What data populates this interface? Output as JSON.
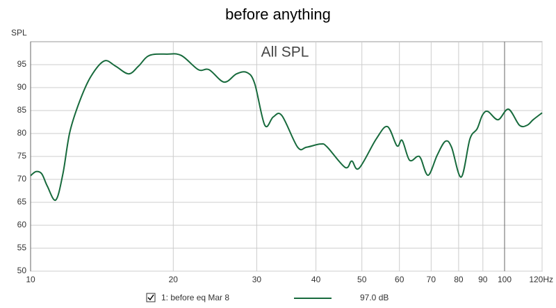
{
  "chart_data": {
    "type": "line",
    "title": "before anything",
    "subtitle": "All SPL",
    "ylabel": "SPL",
    "x": [
      10,
      10.27,
      10.56,
      10.85,
      11.3,
      11.7,
      12.1,
      12.7,
      13.4,
      14.3,
      15.1,
      16.1,
      16.9,
      17.8,
      19.4,
      20.8,
      22.6,
      23.8,
      25.6,
      27.2,
      28.6,
      29.7,
      31.2,
      32.5,
      33.9,
      36.6,
      38.2,
      40.9,
      42.2,
      46.1,
      47.6,
      49.3,
      53.6,
      56.6,
      59.3,
      60.8,
      63,
      65.5,
      66.6,
      69,
      72.1,
      75,
      77.3,
      81,
      84.5,
      87.5,
      89.8,
      92.2,
      96.9,
      101.9,
      107.5,
      111.6,
      114.9,
      120
    ],
    "series": [
      {
        "name": "1: before eq Mar 8",
        "color": "#176a3c",
        "legend_value": "97.0 dB",
        "values": [
          70.8,
          71.7,
          71.2,
          68.5,
          65.5,
          71.2,
          80.3,
          87.1,
          92.4,
          95.8,
          94.7,
          93.0,
          94.7,
          97.0,
          97.3,
          97.0,
          93.9,
          93.9,
          91.2,
          93.0,
          93.3,
          90.9,
          81.8,
          83.6,
          83.9,
          77.0,
          77.0,
          77.7,
          77.1,
          72.6,
          74.0,
          72.4,
          78.8,
          81.5,
          77.3,
          78.5,
          74.2,
          75.0,
          74.5,
          70.9,
          75.3,
          78.3,
          77.0,
          70.5,
          78.8,
          81.0,
          84.0,
          84.8,
          83.0,
          85.3,
          81.8,
          81.8,
          83.0,
          84.5
        ]
      }
    ],
    "xlim": [
      10,
      120
    ],
    "ylim": [
      50,
      100
    ],
    "xscale": "log",
    "xticks": [
      10,
      20,
      30,
      40,
      50,
      60,
      70,
      80,
      90,
      100,
      {
        "value": 120,
        "label": "120Hz"
      }
    ],
    "yticks": [
      50,
      55,
      60,
      65,
      70,
      75,
      80,
      85,
      90,
      95
    ],
    "grid": true
  }
}
